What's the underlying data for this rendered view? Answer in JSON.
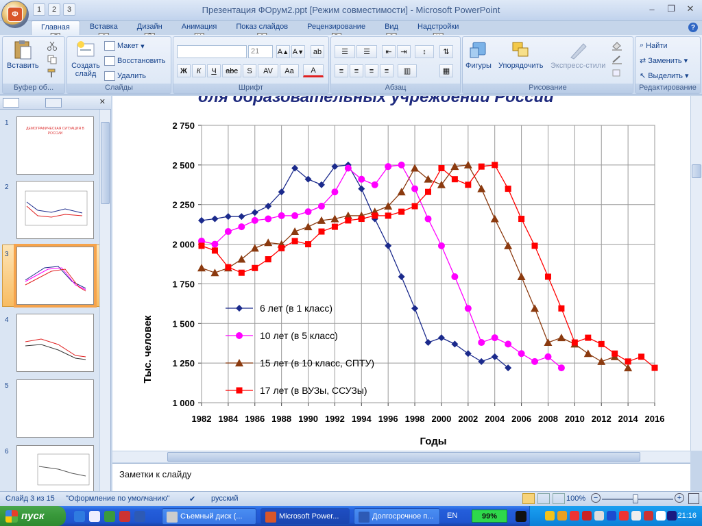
{
  "window": {
    "title": "Презентация ФОрум2.ppt [Режим совместимости] - Microsoft PowerPoint",
    "office_button_letter": "Ф",
    "qat_keys": [
      "1",
      "2",
      "3"
    ],
    "controls": [
      "–",
      "❐",
      "✕"
    ]
  },
  "tabs": [
    {
      "label": "Главная",
      "key": "Я"
    },
    {
      "label": "Вставка",
      "key": "С"
    },
    {
      "label": "Дизайн",
      "key": "Й"
    },
    {
      "label": "Анимация",
      "key": "И"
    },
    {
      "label": "Показ слайдов",
      "key": "З"
    },
    {
      "label": "Рецензирование",
      "key": "Р"
    },
    {
      "label": "Вид",
      "key": "О"
    },
    {
      "label": "Надстройки",
      "key": "Н"
    }
  ],
  "ribbon": {
    "clipboard": {
      "label": "Буфер об...",
      "paste": "Вставить"
    },
    "slides": {
      "label": "Слайды",
      "create": "Создать слайд",
      "layout": "Макет",
      "reset": "Восстановить",
      "delete": "Удалить"
    },
    "font": {
      "label": "Шрифт",
      "size": "21",
      "bold": "Ж",
      "italic": "К",
      "underline": "Ч",
      "strike": "abc",
      "shadow": "S",
      "spacing": "AV",
      "case": "Aa",
      "color": "A"
    },
    "paragraph": {
      "label": "Абзац"
    },
    "drawing": {
      "label": "Рисование",
      "shapes": "Фигуры",
      "arrange": "Упорядочить",
      "styles": "Экспресс-стили"
    },
    "editing": {
      "label": "Редактирование",
      "find": "Найти",
      "replace": "Заменить",
      "select": "Выделить"
    }
  },
  "slides_panel": {
    "thumbs": [
      {
        "num": "1",
        "text": "ДЕМОГРАФИЧЕСКАЯ СИТУАЦИЯ В РОССИИ"
      },
      {
        "num": "2",
        "text": ""
      },
      {
        "num": "3",
        "text": ""
      },
      {
        "num": "4",
        "text": ""
      },
      {
        "num": "5",
        "text": ""
      },
      {
        "num": "6",
        "text": ""
      }
    ]
  },
  "slide": {
    "title": "для образовательных учреждений России"
  },
  "chart_data": {
    "type": "line",
    "title": "",
    "xlabel": "Годы",
    "ylabel": "Тыс. человек",
    "xlim": [
      1982,
      2016
    ],
    "ylim": [
      1000,
      2750
    ],
    "x_ticks": [
      "1982",
      "1984",
      "1986",
      "1988",
      "1990",
      "1992",
      "1994",
      "1996",
      "1998",
      "2000",
      "2002",
      "2004",
      "2006",
      "2008",
      "2010",
      "2012",
      "2014",
      "2016"
    ],
    "y_ticks": [
      "1 000",
      "1 250",
      "1 500",
      "1 750",
      "2 000",
      "2 250",
      "2 500",
      "2 750"
    ],
    "legend_position": "left-bottom",
    "series": [
      {
        "name": "6 лет (в 1 класс)",
        "color": "#1b2a8c",
        "marker": "diamond",
        "x": [
          1982,
          1983,
          1984,
          1985,
          1986,
          1987,
          1988,
          1989,
          1990,
          1991,
          1992,
          1993,
          1994,
          1995,
          1996,
          1997,
          1998,
          1999,
          2000,
          2001,
          2002,
          2003,
          2004,
          2005
        ],
        "y": [
          2150,
          2160,
          2175,
          2175,
          2200,
          2240,
          2330,
          2480,
          2410,
          2375,
          2490,
          2500,
          2350,
          2160,
          1990,
          1795,
          1595,
          1380,
          1410,
          1370,
          1310,
          1260,
          1290,
          1220
        ]
      },
      {
        "name": "10 лет (в 5 класс)",
        "color": "#ff00ff",
        "marker": "circle",
        "x": [
          1982,
          1983,
          1984,
          1985,
          1986,
          1987,
          1988,
          1989,
          1990,
          1991,
          1992,
          1993,
          1994,
          1995,
          1996,
          1997,
          1998,
          1999,
          2000,
          2001,
          2002,
          2003,
          2004,
          2005,
          2006,
          2007,
          2008,
          2009
        ],
        "y": [
          2020,
          2000,
          2080,
          2110,
          2150,
          2160,
          2180,
          2180,
          2205,
          2240,
          2330,
          2480,
          2410,
          2375,
          2490,
          2500,
          2350,
          2160,
          1990,
          1795,
          1595,
          1380,
          1410,
          1370,
          1310,
          1260,
          1290,
          1220
        ]
      },
      {
        "name": "15 лет (в 10 класс, СПТУ)",
        "color": "#8b3a0f",
        "marker": "triangle",
        "x": [
          1982,
          1983,
          1984,
          1985,
          1986,
          1987,
          1988,
          1989,
          1990,
          1991,
          1992,
          1993,
          1994,
          1995,
          1996,
          1997,
          1998,
          1999,
          2000,
          2001,
          2002,
          2003,
          2004,
          2005,
          2006,
          2007,
          2008,
          2009,
          2010,
          2011,
          2012,
          2013,
          2014
        ],
        "y": [
          1850,
          1820,
          1850,
          1905,
          1975,
          2010,
          2000,
          2080,
          2110,
          2150,
          2160,
          2180,
          2180,
          2205,
          2240,
          2330,
          2480,
          2410,
          2375,
          2490,
          2500,
          2350,
          2160,
          1990,
          1795,
          1595,
          1380,
          1410,
          1370,
          1310,
          1260,
          1290,
          1220
        ]
      },
      {
        "name": "17 лет (в ВУЗы, ССУЗы)",
        "color": "#ff0000",
        "marker": "square",
        "x": [
          1982,
          1983,
          1984,
          1985,
          1986,
          1987,
          1988,
          1989,
          1990,
          1991,
          1992,
          1993,
          1994,
          1995,
          1996,
          1997,
          1998,
          1999,
          2000,
          2001,
          2002,
          2003,
          2004,
          2005,
          2006,
          2007,
          2008,
          2009,
          2010,
          2011,
          2012,
          2013,
          2014,
          2015,
          2016
        ],
        "y": [
          1990,
          1960,
          1855,
          1820,
          1850,
          1905,
          1975,
          2020,
          2000,
          2080,
          2110,
          2150,
          2160,
          2180,
          2180,
          2205,
          2240,
          2330,
          2480,
          2410,
          2375,
          2490,
          2500,
          2350,
          2160,
          1990,
          1795,
          1595,
          1380,
          1410,
          1370,
          1310,
          1260,
          1290,
          1220
        ]
      }
    ]
  },
  "notes": {
    "text": "Заметки к слайду"
  },
  "status": {
    "slide_counter": "Слайд 3 из 15",
    "theme": "\"Оформление по умолчанию\"",
    "language": "русский",
    "zoom": "100%"
  },
  "taskbar": {
    "start": "пуск",
    "tasks": [
      "Съемный диск (...",
      "Microsoft Power...",
      "Долгосрочное п..."
    ],
    "lang": "EN",
    "battery": "99%",
    "clock": "21:16"
  }
}
